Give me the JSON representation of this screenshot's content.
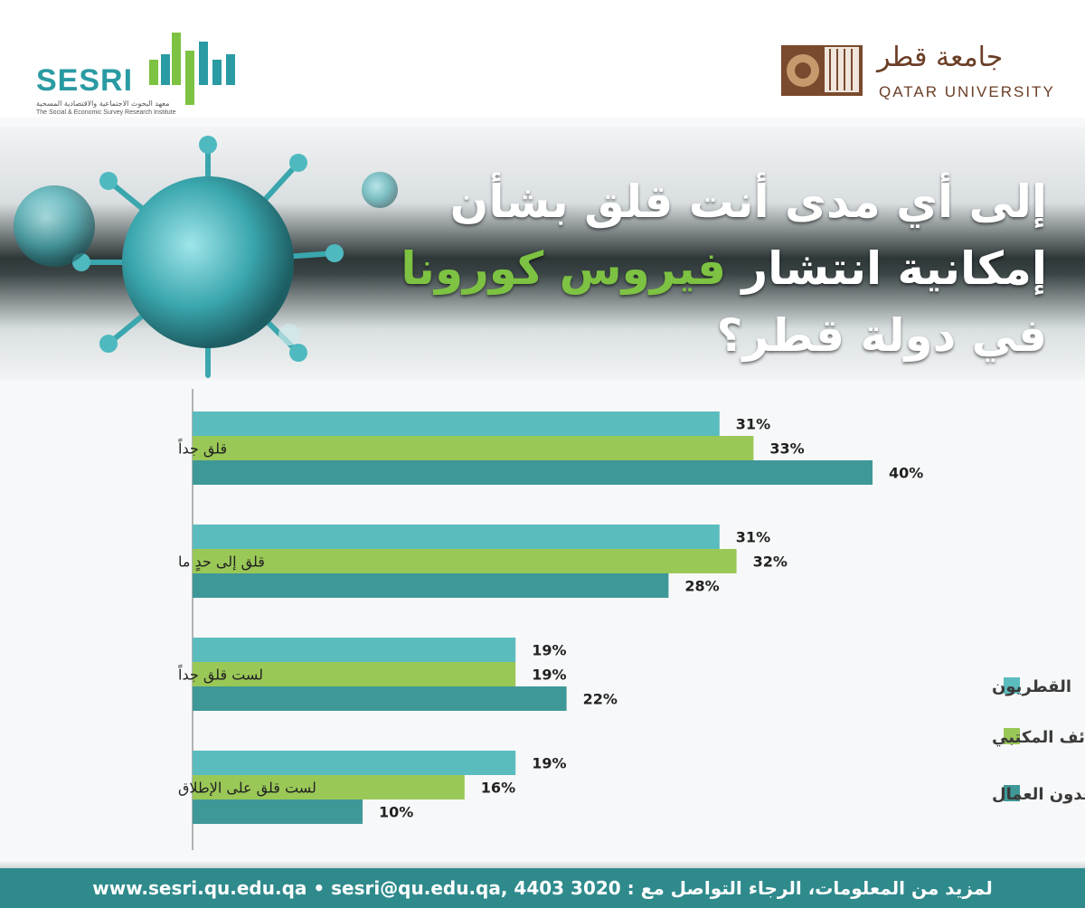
{
  "header": {
    "sesri": {
      "name": "SESRI",
      "arabic_name": "معهد البحوث الاجتماعية والاقتصادية المسحية",
      "english_name": "The Social & Economic Survey Research Institute"
    },
    "qu": {
      "arabic_name": "جامعة قطر",
      "english_name": "QATAR UNIVERSITY"
    }
  },
  "banner": {
    "line1": "إلى أي مدى أنت قلق بشأن",
    "line2_part1": "إمكانية انتشار ",
    "line2_highlight": "فيروس كورونا",
    "line3": "في دولة قطر؟"
  },
  "colors": {
    "qataris": "#5bbcbd",
    "office_expats": "#9ac857",
    "labor_expats": "#3f9898",
    "highlight": "#7dc242",
    "footer": "#2f8a8c"
  },
  "chart_data": {
    "type": "bar",
    "orientation": "horizontal",
    "categories": [
      "قلق جداً",
      "قلق إلى حدٍ ما",
      "لست قلق جداً",
      "لست قلق على الإطلاق"
    ],
    "series": [
      {
        "name": "القطريون",
        "values": [
          31,
          31,
          19,
          19
        ],
        "labels": [
          "31%",
          "31%",
          "19%",
          "19%"
        ]
      },
      {
        "name": "الوافدون ذوي الوظائف المكتبي",
        "values": [
          33,
          32,
          19,
          16
        ],
        "labels": [
          "33%",
          "32%",
          "19%",
          "16%"
        ]
      },
      {
        "name": "الوافدون العمال",
        "values": [
          40,
          28,
          22,
          10
        ],
        "labels": [
          "40%",
          "28%",
          "22%",
          "10%"
        ]
      }
    ],
    "xlim": [
      0,
      42
    ],
    "grid": false,
    "legend_position": "right"
  },
  "footer": {
    "text": "www.sesri.qu.edu.qa • sesri@qu.edu.qa,  4403 3020  :  لمزيد من المعلومات، الرجاء التواصل مع"
  }
}
